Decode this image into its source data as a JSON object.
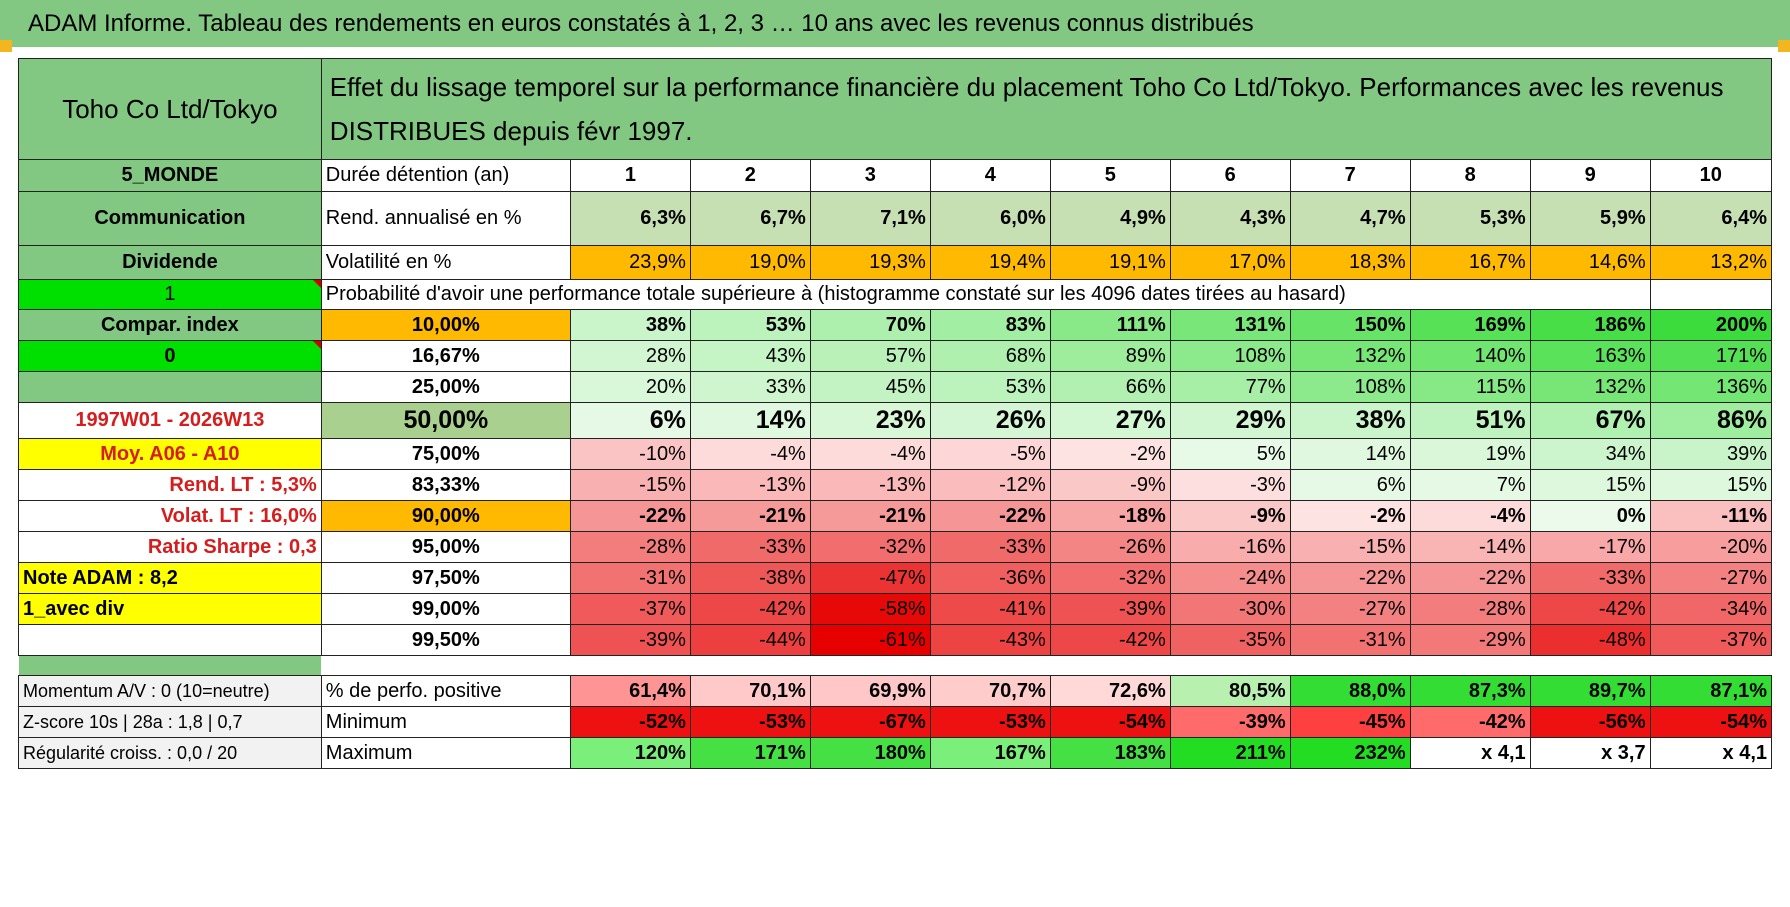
{
  "title": "ADAM Informe. Tableau des rendements en euros constatés à 1, 2, 3 … 10 ans avec les revenus connus distribués",
  "header": {
    "asset": "Toho Co Ltd/Tokyo",
    "description": "Effet du lissage temporel sur la performance financière du placement Toho Co Ltd/Tokyo. Performances avec les revenus DISTRIBUES depuis févr 1997."
  },
  "left_labels": {
    "region": "5_MONDE",
    "sector": "Communication",
    "dividend": "Dividende",
    "flag1": "1",
    "compar_index": "Compar. index",
    "flag0": "0",
    "blank": "",
    "period": "1997W01 - 2026W13",
    "moy": "Moy. A06 - A10",
    "rend_lt": "Rend. LT :    5,3%",
    "volat_lt": "Volat. LT :    16,0%",
    "sharpe": "Ratio Sharpe :     0,3",
    "note": "Note ADAM : 8,2",
    "avec_div": "1_avec div"
  },
  "duration": {
    "label": "Durée détention (an)",
    "years": [
      "1",
      "2",
      "3",
      "4",
      "5",
      "6",
      "7",
      "8",
      "9",
      "10"
    ]
  },
  "rend": {
    "label": "Rend. annualisé en %",
    "values": [
      "6,3%",
      "6,7%",
      "7,1%",
      "6,0%",
      "4,9%",
      "4,3%",
      "4,7%",
      "5,3%",
      "5,9%",
      "6,4%"
    ]
  },
  "volat": {
    "label": "Volatilité en %",
    "values": [
      "23,9%",
      "19,0%",
      "19,3%",
      "19,4%",
      "19,1%",
      "17,0%",
      "18,3%",
      "16,7%",
      "14,6%",
      "13,2%"
    ]
  },
  "prob_header": "Probabilité d'avoir une performance totale supérieure à (histogramme constaté sur les 4096 dates tirées au hasard)",
  "prob_rows": [
    {
      "pct": "10,00%",
      "values": [
        "38%",
        "53%",
        "70%",
        "83%",
        "111%",
        "131%",
        "150%",
        "169%",
        "186%",
        "200%"
      ]
    },
    {
      "pct": "16,67%",
      "values": [
        "28%",
        "43%",
        "57%",
        "68%",
        "89%",
        "108%",
        "132%",
        "140%",
        "163%",
        "171%"
      ]
    },
    {
      "pct": "25,00%",
      "values": [
        "20%",
        "33%",
        "45%",
        "53%",
        "66%",
        "77%",
        "108%",
        "115%",
        "132%",
        "136%"
      ]
    },
    {
      "pct": "50,00%",
      "values": [
        "6%",
        "14%",
        "23%",
        "26%",
        "27%",
        "29%",
        "38%",
        "51%",
        "67%",
        "86%"
      ]
    },
    {
      "pct": "75,00%",
      "values": [
        "-10%",
        "-4%",
        "-4%",
        "-5%",
        "-2%",
        "5%",
        "14%",
        "19%",
        "34%",
        "39%"
      ]
    },
    {
      "pct": "83,33%",
      "values": [
        "-15%",
        "-13%",
        "-13%",
        "-12%",
        "-9%",
        "-3%",
        "6%",
        "7%",
        "15%",
        "15%"
      ]
    },
    {
      "pct": "90,00%",
      "values": [
        "-22%",
        "-21%",
        "-21%",
        "-22%",
        "-18%",
        "-9%",
        "-2%",
        "-4%",
        "0%",
        "-11%"
      ]
    },
    {
      "pct": "95,00%",
      "values": [
        "-28%",
        "-33%",
        "-32%",
        "-33%",
        "-26%",
        "-16%",
        "-15%",
        "-14%",
        "-17%",
        "-20%"
      ]
    },
    {
      "pct": "97,50%",
      "values": [
        "-31%",
        "-38%",
        "-47%",
        "-36%",
        "-32%",
        "-24%",
        "-22%",
        "-22%",
        "-33%",
        "-27%"
      ]
    },
    {
      "pct": "99,00%",
      "values": [
        "-37%",
        "-42%",
        "-58%",
        "-41%",
        "-39%",
        "-30%",
        "-27%",
        "-28%",
        "-42%",
        "-34%"
      ]
    },
    {
      "pct": "99,50%",
      "values": [
        "-39%",
        "-44%",
        "-61%",
        "-43%",
        "-42%",
        "-35%",
        "-31%",
        "-29%",
        "-48%",
        "-37%"
      ]
    }
  ],
  "bottom": {
    "momentum": "Momentum A/V : 0 (10=neutre)",
    "zscore": "Z-score 10s | 28a : 1,8 | 0,7",
    "regularite": "Régularité croiss. : 0,0 / 20",
    "pos_label": "% de perfo. positive",
    "pos_values": [
      "61,4%",
      "70,1%",
      "69,9%",
      "70,7%",
      "72,6%",
      "80,5%",
      "88,0%",
      "87,3%",
      "89,7%",
      "87,1%"
    ],
    "min_label": "Minimum",
    "min_values": [
      "-52%",
      "-53%",
      "-67%",
      "-53%",
      "-54%",
      "-39%",
      "-45%",
      "-42%",
      "-56%",
      "-54%"
    ],
    "max_label": "Maximum",
    "max_values": [
      "120%",
      "171%",
      "180%",
      "167%",
      "183%",
      "211%",
      "232%",
      "x 4,1",
      "x 3,7",
      "x 4,1"
    ]
  },
  "colors": {
    "header_green": "#82c782",
    "light_green": "#c6e0b4",
    "bright_green": "#00e000",
    "orange": "#ffb900",
    "yellow": "#ffff00",
    "red_text": "#d51d1d"
  }
}
